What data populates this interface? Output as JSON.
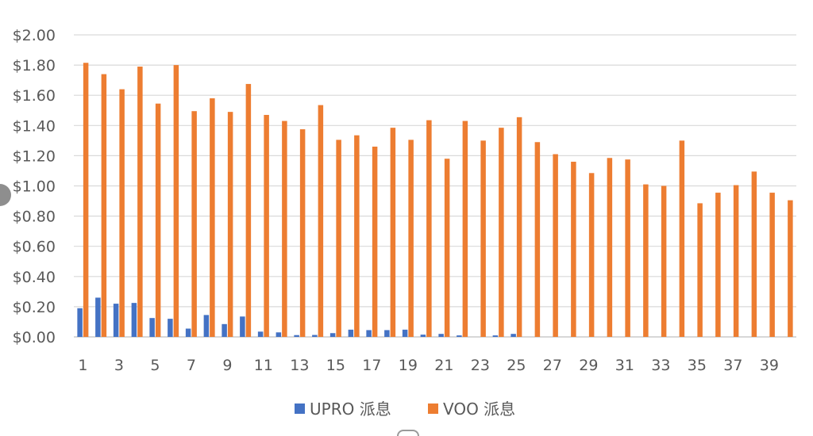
{
  "chart_data": {
    "type": "bar",
    "title": "",
    "xlabel": "",
    "ylabel": "",
    "ylim": [
      0,
      2.0
    ],
    "yticks": [
      "$0.00",
      "$0.20",
      "$0.40",
      "$0.60",
      "$0.80",
      "$1.00",
      "$1.20",
      "$1.40",
      "$1.60",
      "$1.80",
      "$2.00"
    ],
    "xtick_labels": [
      "1",
      "3",
      "5",
      "7",
      "9",
      "11",
      "13",
      "15",
      "17",
      "19",
      "21",
      "23",
      "25",
      "27",
      "29",
      "31",
      "33",
      "35",
      "37",
      "39"
    ],
    "categories": [
      1,
      2,
      3,
      4,
      5,
      6,
      7,
      8,
      9,
      10,
      11,
      12,
      13,
      14,
      15,
      16,
      17,
      18,
      19,
      20,
      21,
      22,
      23,
      24,
      25,
      26,
      27,
      28,
      29,
      30,
      31,
      32,
      33,
      34,
      35,
      36,
      37,
      38,
      39,
      40
    ],
    "grid": true,
    "legend_position": "bottom",
    "series": [
      {
        "name": "UPRO 派息",
        "color": "#4472C4",
        "values": [
          0.19,
          0.26,
          0.22,
          0.225,
          0.125,
          0.12,
          0.055,
          0.145,
          0.085,
          0.135,
          0.035,
          0.03,
          0.012,
          0.013,
          0.025,
          0.048,
          0.045,
          0.045,
          0.048,
          0.015,
          0.02,
          0.01,
          0.0,
          0.01,
          0.02,
          0,
          0,
          0,
          0,
          0,
          0,
          0,
          0,
          0,
          0,
          0,
          0,
          0,
          0,
          0
        ]
      },
      {
        "name": "VOO 派息",
        "color": "#ED7D31",
        "values": [
          1.815,
          1.74,
          1.64,
          1.79,
          1.545,
          1.8,
          1.495,
          1.58,
          1.49,
          1.675,
          1.47,
          1.43,
          1.375,
          1.535,
          1.305,
          1.335,
          1.26,
          1.385,
          1.305,
          1.435,
          1.18,
          1.43,
          1.3,
          1.385,
          1.455,
          1.29,
          1.21,
          1.16,
          1.085,
          1.185,
          1.175,
          1.01,
          1.0,
          1.3,
          0.885,
          0.955,
          1.005,
          1.095,
          0.955,
          0.905
        ]
      }
    ]
  }
}
